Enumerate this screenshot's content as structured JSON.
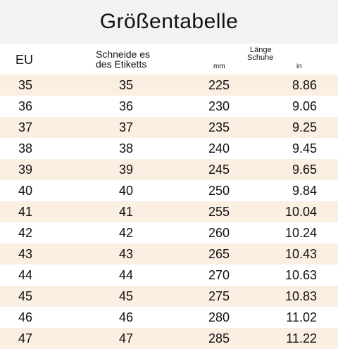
{
  "title": "Größentabelle",
  "headers": {
    "eu": "EU",
    "label_line1": "Schneide es",
    "label_line2": "des Etiketts",
    "length_line1": "Länge",
    "length_line2": "Schuhe",
    "mm": "mm",
    "in": "in"
  },
  "rows": [
    {
      "eu": "35",
      "label": "35",
      "mm": "225",
      "in": "8.86"
    },
    {
      "eu": "36",
      "label": "36",
      "mm": "230",
      "in": "9.06"
    },
    {
      "eu": "37",
      "label": "37",
      "mm": "235",
      "in": "9.25"
    },
    {
      "eu": "38",
      "label": "38",
      "mm": "240",
      "in": "9.45"
    },
    {
      "eu": "39",
      "label": "39",
      "mm": "245",
      "in": "9.65"
    },
    {
      "eu": "40",
      "label": "40",
      "mm": "250",
      "in": "9.84"
    },
    {
      "eu": "41",
      "label": "41",
      "mm": "255",
      "in": "10.04"
    },
    {
      "eu": "42",
      "label": "42",
      "mm": "260",
      "in": "10.24"
    },
    {
      "eu": "43",
      "label": "43",
      "mm": "265",
      "in": "10.43"
    },
    {
      "eu": "44",
      "label": "44",
      "mm": "270",
      "in": "10.63"
    },
    {
      "eu": "45",
      "label": "45",
      "mm": "275",
      "in": "10.83"
    },
    {
      "eu": "46",
      "label": "46",
      "mm": "280",
      "in": "11.02"
    },
    {
      "eu": "47",
      "label": "47",
      "mm": "285",
      "in": "11.22"
    }
  ],
  "colors": {
    "title_background": "#f2f2f2",
    "shaded_row": "#fbefe2",
    "plain_row": "#ffffff"
  }
}
